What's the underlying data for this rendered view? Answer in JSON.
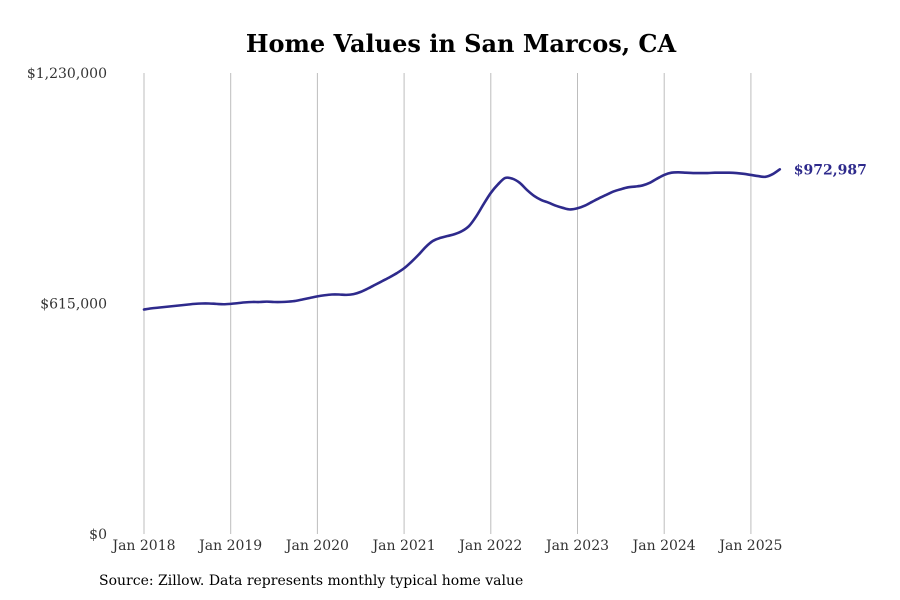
{
  "chart_data": {
    "type": "line",
    "title": "Home Values in San Marcos, CA",
    "xlabel": "",
    "ylabel": "",
    "ylim": [
      0,
      1230000
    ],
    "yticks": [
      {
        "value": 0,
        "label": "$0"
      },
      {
        "value": 615000,
        "label": "$615,000"
      },
      {
        "value": 1230000,
        "label": "$1,230,000"
      }
    ],
    "xticks": [
      {
        "value": "2018-01",
        "label": "Jan 2018"
      },
      {
        "value": "2019-01",
        "label": "Jan 2019"
      },
      {
        "value": "2020-01",
        "label": "Jan 2020"
      },
      {
        "value": "2021-01",
        "label": "Jan 2021"
      },
      {
        "value": "2022-01",
        "label": "Jan 2022"
      },
      {
        "value": "2023-01",
        "label": "Jan 2023"
      },
      {
        "value": "2024-01",
        "label": "Jan 2024"
      },
      {
        "value": "2025-01",
        "label": "Jan 2025"
      }
    ],
    "grid": "vertical",
    "color": "#2e2a8c",
    "end_label": "$972,987",
    "series": [
      {
        "x": [
          "2018-01",
          "2018-02",
          "2018-03",
          "2018-04",
          "2018-05",
          "2018-06",
          "2018-07",
          "2018-08",
          "2018-09",
          "2018-10",
          "2018-11",
          "2018-12",
          "2019-01",
          "2019-02",
          "2019-03",
          "2019-04",
          "2019-05",
          "2019-06",
          "2019-07",
          "2019-08",
          "2019-09",
          "2019-10",
          "2019-11",
          "2019-12",
          "2020-01",
          "2020-02",
          "2020-03",
          "2020-04",
          "2020-05",
          "2020-06",
          "2020-07",
          "2020-08",
          "2020-09",
          "2020-10",
          "2020-11",
          "2020-12",
          "2021-01",
          "2021-02",
          "2021-03",
          "2021-04",
          "2021-05",
          "2021-06",
          "2021-07",
          "2021-08",
          "2021-09",
          "2021-10",
          "2021-11",
          "2021-12",
          "2022-01",
          "2022-02",
          "2022-03",
          "2022-04",
          "2022-05",
          "2022-06",
          "2022-07",
          "2022-08",
          "2022-09",
          "2022-10",
          "2022-11",
          "2022-12",
          "2023-01",
          "2023-02",
          "2023-03",
          "2023-04",
          "2023-05",
          "2023-06",
          "2023-07",
          "2023-08",
          "2023-09",
          "2023-10",
          "2023-11",
          "2023-12",
          "2024-01",
          "2024-02",
          "2024-03",
          "2024-04",
          "2024-05",
          "2024-06",
          "2024-07",
          "2024-08",
          "2024-09",
          "2024-10",
          "2024-11",
          "2024-12",
          "2025-01",
          "2025-02",
          "2025-03",
          "2025-04",
          "2025-05"
        ],
        "values": [
          599000,
          602000,
          604000,
          606000,
          608000,
          610000,
          612000,
          614000,
          615000,
          615000,
          614000,
          613000,
          614000,
          616000,
          618000,
          619000,
          619000,
          620000,
          619000,
          619000,
          620000,
          622000,
          626000,
          630000,
          634000,
          637000,
          639000,
          639000,
          638000,
          640000,
          646000,
          655000,
          665000,
          675000,
          685000,
          696000,
          709000,
          726000,
          745000,
          766000,
          782000,
          790000,
          795000,
          800000,
          808000,
          822000,
          848000,
          880000,
          910000,
          933000,
          950000,
          948000,
          937000,
          918000,
          902000,
          891000,
          884000,
          876000,
          870000,
          866000,
          869000,
          876000,
          886000,
          896000,
          905000,
          914000,
          920000,
          925000,
          927000,
          930000,
          937000,
          948000,
          958000,
          964000,
          965000,
          964000,
          963000,
          963000,
          963000,
          964000,
          964000,
          964000,
          963000,
          961000,
          958000,
          955000,
          953000,
          960000,
          972987
        ]
      }
    ]
  },
  "footer": {
    "source": "Source: Zillow. Data represents monthly typical home value"
  }
}
